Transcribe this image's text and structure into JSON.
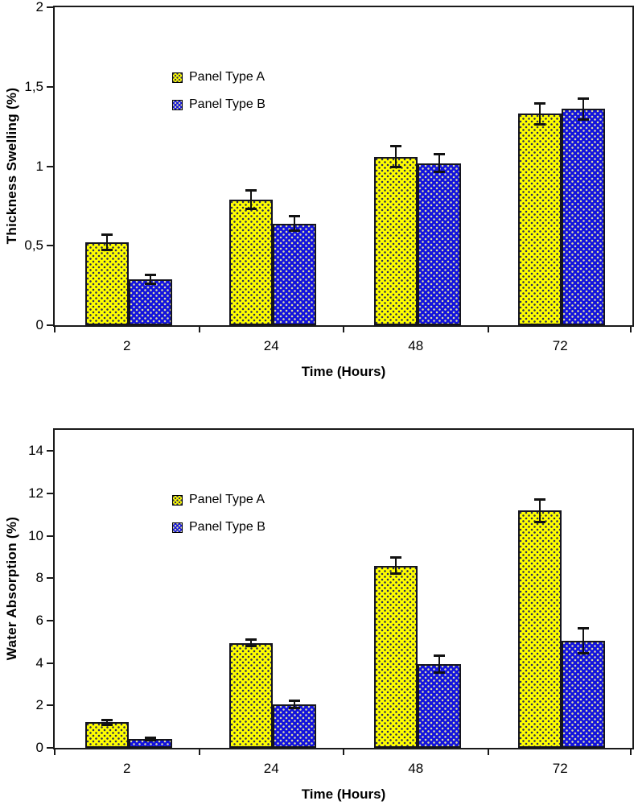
{
  "figure": {
    "background": "#ffffff"
  },
  "colors": {
    "panel_a_fill": "#ffff00",
    "panel_a_dot": "#2f2f55",
    "panel_b_fill": "#1212dd",
    "panel_b_dot": "#d9d9a6",
    "bar_border": "#14141e",
    "axis": "#1a1a1a",
    "error_bar": "#111111",
    "text": "#000000"
  },
  "chart_data": [
    {
      "type": "bar",
      "title": "",
      "xlabel": "Time (Hours)",
      "ylabel": "Thickness Swelling (%)",
      "categories": [
        "2",
        "24",
        "48",
        "72"
      ],
      "series": [
        {
          "name": "Panel Type A",
          "values": [
            0.52,
            0.79,
            1.06,
            1.33
          ],
          "errors": [
            0.05,
            0.06,
            0.07,
            0.07
          ]
        },
        {
          "name": "Panel Type B",
          "values": [
            0.29,
            0.64,
            1.02,
            1.36
          ],
          "errors": [
            0.03,
            0.05,
            0.06,
            0.07
          ]
        }
      ],
      "ylim": [
        0,
        2
      ],
      "yticks": [
        0,
        0.5,
        1,
        1.5,
        2
      ],
      "ytick_labels": [
        "0",
        "0,5",
        "1",
        "1,5",
        "2"
      ],
      "grid": false,
      "legend_position": "inside-top-left",
      "error_bars": true
    },
    {
      "type": "bar",
      "title": "",
      "xlabel": "Time (Hours)",
      "ylabel": "Water Absorption (%)",
      "categories": [
        "2",
        "24",
        "48",
        "72"
      ],
      "series": [
        {
          "name": "Panel Type A",
          "values": [
            1.2,
            4.95,
            8.6,
            11.2
          ],
          "errors": [
            0.12,
            0.18,
            0.4,
            0.55
          ]
        },
        {
          "name": "Panel Type B",
          "values": [
            0.42,
            2.05,
            3.95,
            5.05
          ],
          "errors": [
            0.08,
            0.2,
            0.4,
            0.6
          ]
        }
      ],
      "ylim": [
        0,
        15
      ],
      "yticks": [
        0,
        2,
        4,
        6,
        8,
        10,
        12,
        14
      ],
      "ytick_labels": [
        "0",
        "2",
        "4",
        "6",
        "8",
        "10",
        "12",
        "14"
      ],
      "grid": false,
      "legend_position": "inside-top-left",
      "error_bars": true
    }
  ]
}
